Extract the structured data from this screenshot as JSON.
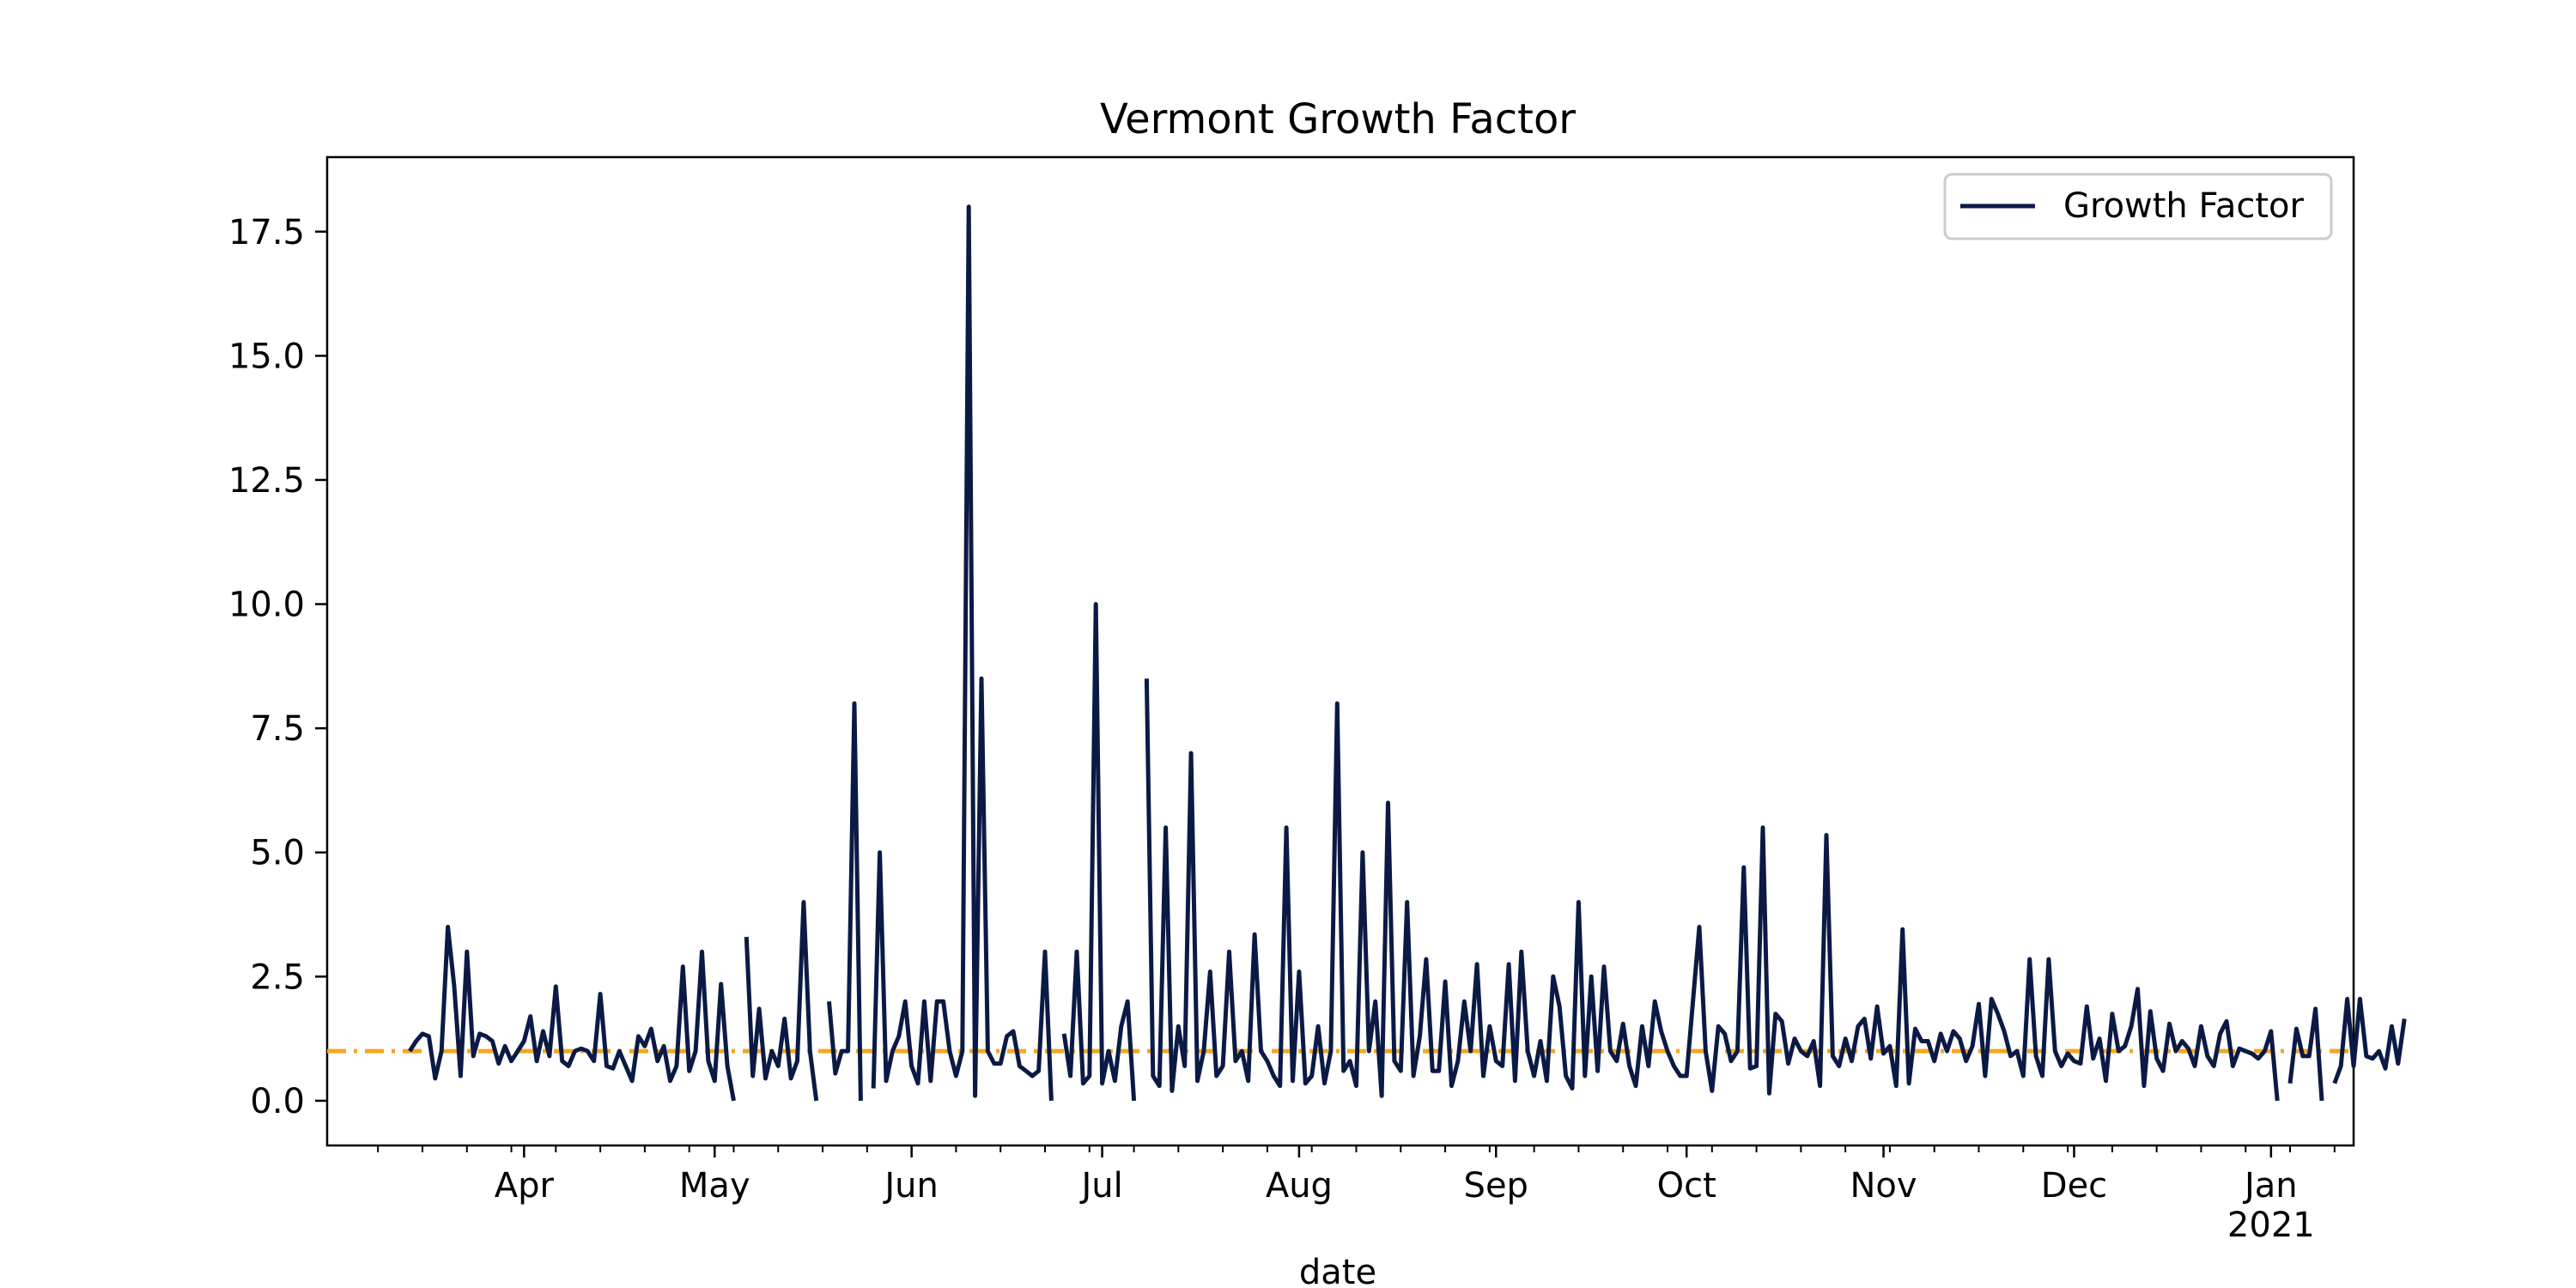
{
  "chart_data": {
    "type": "line",
    "title": "Vermont Growth Factor",
    "xlabel": "date",
    "ylabel": "",
    "x_range": [
      "2020-03-01",
      "2021-01-14"
    ],
    "ylim": [
      -0.9,
      19.0
    ],
    "y_ticks": [
      0.0,
      2.5,
      5.0,
      7.5,
      10.0,
      12.5,
      15.0,
      17.5
    ],
    "y_tick_labels": [
      "0.0",
      "2.5",
      "5.0",
      "7.5",
      "10.0",
      "12.5",
      "15.0",
      "17.5"
    ],
    "x_ticks": [
      {
        "date": "2020-04-01",
        "label": "Apr",
        "sublabel": ""
      },
      {
        "date": "2020-05-01",
        "label": "May",
        "sublabel": ""
      },
      {
        "date": "2020-06-01",
        "label": "Jun",
        "sublabel": ""
      },
      {
        "date": "2020-07-01",
        "label": "Jul",
        "sublabel": ""
      },
      {
        "date": "2020-08-01",
        "label": "Aug",
        "sublabel": ""
      },
      {
        "date": "2020-09-01",
        "label": "Sep",
        "sublabel": ""
      },
      {
        "date": "2020-10-01",
        "label": "Oct",
        "sublabel": ""
      },
      {
        "date": "2020-11-01",
        "label": "Nov",
        "sublabel": ""
      },
      {
        "date": "2020-12-01",
        "label": "Dec",
        "sublabel": ""
      },
      {
        "date": "2021-01-01",
        "label": "Jan",
        "sublabel": "2021"
      }
    ],
    "grid": false,
    "legend": {
      "position": "top-right"
    },
    "reference_line": {
      "y": 1.0,
      "color": "#f5a623",
      "style": "dash-dot"
    },
    "series": [
      {
        "name": "Growth Factor",
        "color": "#0b1a45",
        "start_date": "2020-03-14",
        "values": [
          1.0,
          1.2,
          1.35,
          1.3,
          0.45,
          1.0,
          3.5,
          2.3,
          0.5,
          3.0,
          0.9,
          1.35,
          1.3,
          1.2,
          0.75,
          1.1,
          0.8,
          1.0,
          1.2,
          1.7,
          0.8,
          1.4,
          0.9,
          2.3,
          0.8,
          0.7,
          1.0,
          1.05,
          1.0,
          0.8,
          2.15,
          0.7,
          0.65,
          1.0,
          0.7,
          0.4,
          1.3,
          1.1,
          1.45,
          0.8,
          1.1,
          0.4,
          0.7,
          2.7,
          0.6,
          1.0,
          3.0,
          0.8,
          0.4,
          2.35,
          0.7,
          0.0,
          null,
          3.3,
          0.5,
          1.85,
          0.45,
          1.0,
          0.7,
          1.65,
          0.45,
          0.8,
          4.0,
          1.0,
          0.0,
          null,
          2.0,
          0.55,
          1.0,
          1.0,
          8.0,
          0.0,
          null,
          0.25,
          5.0,
          0.4,
          1.0,
          1.3,
          2.0,
          0.7,
          0.35,
          2.0,
          0.4,
          2.0,
          2.0,
          1.0,
          0.5,
          1.0,
          18.0,
          0.1,
          8.5,
          1.0,
          0.75,
          0.75,
          1.3,
          1.4,
          0.7,
          0.6,
          0.5,
          0.6,
          3.0,
          0.0,
          null,
          1.35,
          0.5,
          3.0,
          0.35,
          0.5,
          10.0,
          0.35,
          1.0,
          0.4,
          1.5,
          2.0,
          0.0,
          null,
          8.5,
          0.5,
          0.3,
          5.5,
          0.2,
          1.5,
          0.7,
          7.0,
          0.4,
          1.0,
          2.6,
          0.5,
          0.7,
          3.0,
          0.8,
          1.0,
          0.4,
          3.35,
          1.0,
          0.8,
          0.5,
          0.3,
          5.5,
          0.4,
          2.6,
          0.35,
          0.5,
          1.5,
          0.35,
          1.0,
          8.0,
          0.6,
          0.8,
          0.3,
          5.0,
          1.0,
          2.0,
          0.1,
          6.0,
          0.8,
          0.6,
          4.0,
          0.5,
          1.3,
          2.85,
          0.6,
          0.6,
          2.4,
          0.3,
          0.8,
          2.0,
          1.0,
          2.75,
          0.5,
          1.5,
          0.8,
          0.7,
          2.75,
          0.4,
          3.0,
          1.0,
          0.5,
          1.2,
          0.4,
          2.5,
          1.9,
          0.5,
          0.25,
          4.0,
          0.5,
          2.5,
          0.6,
          2.7,
          1.0,
          0.8,
          1.55,
          0.7,
          0.3,
          1.5,
          0.7,
          2.0,
          1.4,
          1.0,
          0.7,
          0.5,
          0.5,
          2.0,
          3.5,
          1.0,
          0.2,
          1.5,
          1.35,
          0.8,
          1.0,
          4.7,
          0.65,
          0.7,
          5.5,
          0.15,
          1.75,
          1.6,
          0.75,
          1.25,
          1.0,
          0.9,
          1.2,
          0.3,
          5.35,
          0.9,
          0.7,
          1.25,
          0.8,
          1.5,
          1.65,
          0.85,
          1.9,
          0.95,
          1.1,
          0.3,
          3.45,
          0.35,
          1.45,
          1.2,
          1.2,
          0.8,
          1.35,
          1.0,
          1.4,
          1.25,
          0.8,
          1.1,
          1.95,
          0.5,
          2.05,
          1.75,
          1.4,
          0.9,
          1.0,
          0.5,
          2.85,
          0.9,
          0.5,
          2.85,
          1.0,
          0.7,
          0.95,
          0.8,
          0.75,
          1.9,
          0.85,
          1.25,
          0.4,
          1.75,
          1.0,
          1.1,
          1.5,
          2.25,
          0.3,
          1.8,
          0.85,
          0.6,
          1.55,
          1.0,
          1.2,
          1.05,
          0.7,
          1.5,
          0.9,
          0.7,
          1.35,
          1.6,
          0.7,
          1.05,
          1.0,
          0.95,
          0.85,
          1.0,
          1.4,
          0.0,
          null,
          0.35,
          1.45,
          0.9,
          0.9,
          1.85,
          0.0,
          null,
          0.35,
          0.7,
          2.05,
          0.7,
          2.05,
          0.9,
          0.85,
          1.0,
          0.65,
          1.5,
          0.75,
          1.65
        ]
      }
    ]
  }
}
